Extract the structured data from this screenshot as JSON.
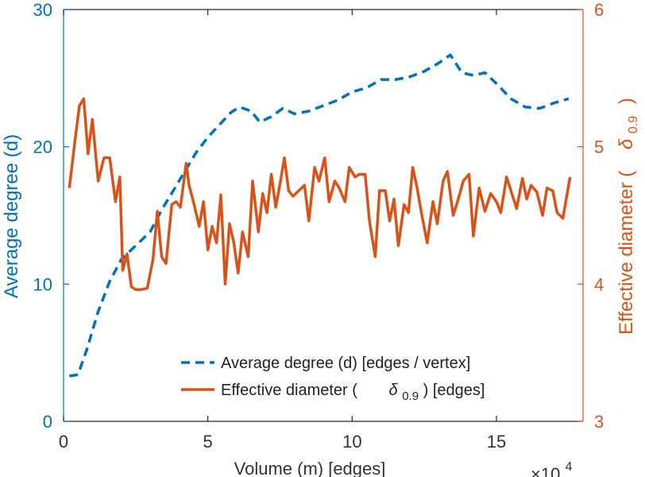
{
  "chart_data": {
    "type": "line",
    "xlabel": "Volume (m) [edges]",
    "x_exponent_label": "×10",
    "x_exponent_power": "4",
    "xlim": [
      0,
      18
    ],
    "xticks": [
      0,
      5,
      10,
      15
    ],
    "ylabel_left": "Average degree (d)",
    "ylim_left": [
      0,
      30
    ],
    "yticks_left": [
      0,
      10,
      20,
      30
    ],
    "ylabel_right": "Effective diameter (",
    "ylabel_right_symbol": "δ",
    "ylabel_right_subscript": "0.9",
    "ylabel_right_close": ")",
    "ylim_right": [
      3,
      6
    ],
    "yticks_right": [
      3,
      4,
      5,
      6
    ],
    "colors": {
      "left": "#0072BD",
      "right": "#D95319",
      "axis_left": "#0072BD",
      "axis_right": "#D95319"
    },
    "legend": {
      "location": "bottom-center",
      "entries": [
        {
          "text": "Average degree (d) [edges / vertex]",
          "style": "dashed",
          "color": "#0072BD"
        },
        {
          "text_before": "Effective diameter (",
          "symbol": "δ",
          "subscript": "0.9",
          "text_after": ") [edges]",
          "style": "solid",
          "color": "#D95319"
        }
      ]
    },
    "series": [
      {
        "name": "Average degree (d) [edges / vertex]",
        "axis": "left",
        "style": "dashed",
        "color": "#0072BD",
        "x": [
          0.2,
          0.5,
          0.8,
          1.2,
          1.6,
          2.0,
          2.4,
          2.7,
          3.0,
          3.4,
          3.8,
          4.2,
          4.6,
          5.0,
          5.4,
          5.8,
          6.1,
          6.5,
          6.8,
          7.2,
          7.6,
          8.0,
          8.5,
          9.0,
          9.5,
          10.0,
          10.5,
          11.0,
          11.5,
          12.0,
          12.5,
          13.0,
          13.4,
          13.8,
          14.2,
          14.6,
          15.0,
          15.5,
          16.0,
          16.5,
          17.0,
          17.5
        ],
        "y": [
          3.3,
          3.4,
          5.2,
          8.0,
          10.2,
          11.8,
          12.6,
          13.2,
          13.8,
          15.4,
          16.8,
          18.2,
          19.6,
          20.7,
          21.6,
          22.5,
          22.9,
          22.6,
          21.8,
          22.2,
          22.8,
          22.4,
          22.6,
          23.0,
          23.4,
          24.0,
          24.3,
          24.9,
          24.9,
          25.1,
          25.5,
          26.1,
          26.7,
          25.4,
          25.2,
          25.4,
          24.6,
          23.5,
          22.9,
          22.8,
          23.2,
          23.5
        ]
      },
      {
        "name": "Effective diameter (δ0.9) [edges]",
        "axis": "right",
        "style": "solid",
        "color": "#D95319",
        "x": [
          0.2,
          0.4,
          0.55,
          0.7,
          0.85,
          1.0,
          1.2,
          1.4,
          1.6,
          1.8,
          1.95,
          2.05,
          2.2,
          2.35,
          2.5,
          2.7,
          2.9,
          3.1,
          3.25,
          3.4,
          3.55,
          3.75,
          3.9,
          4.05,
          4.25,
          4.35,
          4.5,
          4.7,
          4.85,
          5.0,
          5.15,
          5.3,
          5.45,
          5.6,
          5.75,
          5.9,
          6.05,
          6.2,
          6.4,
          6.55,
          6.75,
          6.9,
          7.05,
          7.2,
          7.35,
          7.5,
          7.65,
          7.8,
          7.95,
          8.15,
          8.35,
          8.5,
          8.7,
          8.85,
          9.05,
          9.2,
          9.4,
          9.55,
          9.75,
          9.9,
          10.1,
          10.25,
          10.45,
          10.6,
          10.8,
          10.95,
          11.15,
          11.3,
          11.45,
          11.6,
          11.8,
          11.95,
          12.1,
          12.25,
          12.4,
          12.6,
          12.8,
          12.95,
          13.15,
          13.3,
          13.5,
          13.65,
          13.85,
          14.05,
          14.2,
          14.4,
          14.6,
          14.8,
          15.0,
          15.15,
          15.35,
          15.5,
          15.7,
          15.9,
          16.05,
          16.2,
          16.4,
          16.6,
          16.75,
          16.95,
          17.1,
          17.3,
          17.55
        ],
        "y": [
          4.7,
          5.05,
          5.3,
          5.35,
          4.95,
          5.2,
          4.75,
          4.92,
          4.92,
          4.6,
          4.78,
          4.1,
          4.22,
          3.98,
          3.96,
          3.96,
          3.97,
          4.18,
          4.53,
          4.2,
          4.15,
          4.58,
          4.6,
          4.56,
          4.88,
          4.72,
          4.6,
          4.42,
          4.6,
          4.25,
          4.42,
          4.3,
          4.65,
          4.0,
          4.44,
          4.3,
          4.08,
          4.38,
          4.2,
          4.75,
          4.38,
          4.66,
          4.52,
          4.8,
          4.56,
          4.73,
          4.92,
          4.68,
          4.64,
          4.68,
          4.72,
          4.46,
          4.85,
          4.75,
          4.92,
          4.6,
          4.75,
          4.7,
          4.6,
          4.85,
          4.78,
          4.8,
          4.8,
          4.46,
          4.2,
          4.68,
          4.68,
          4.46,
          4.62,
          4.28,
          4.58,
          4.52,
          4.85,
          4.7,
          4.52,
          4.3,
          4.6,
          4.44,
          4.75,
          4.82,
          4.5,
          4.6,
          4.75,
          4.8,
          4.35,
          4.7,
          4.53,
          4.66,
          4.6,
          4.52,
          4.78,
          4.68,
          4.55,
          4.77,
          4.62,
          4.72,
          4.67,
          4.5,
          4.7,
          4.68,
          4.52,
          4.48,
          4.78
        ]
      }
    ]
  }
}
